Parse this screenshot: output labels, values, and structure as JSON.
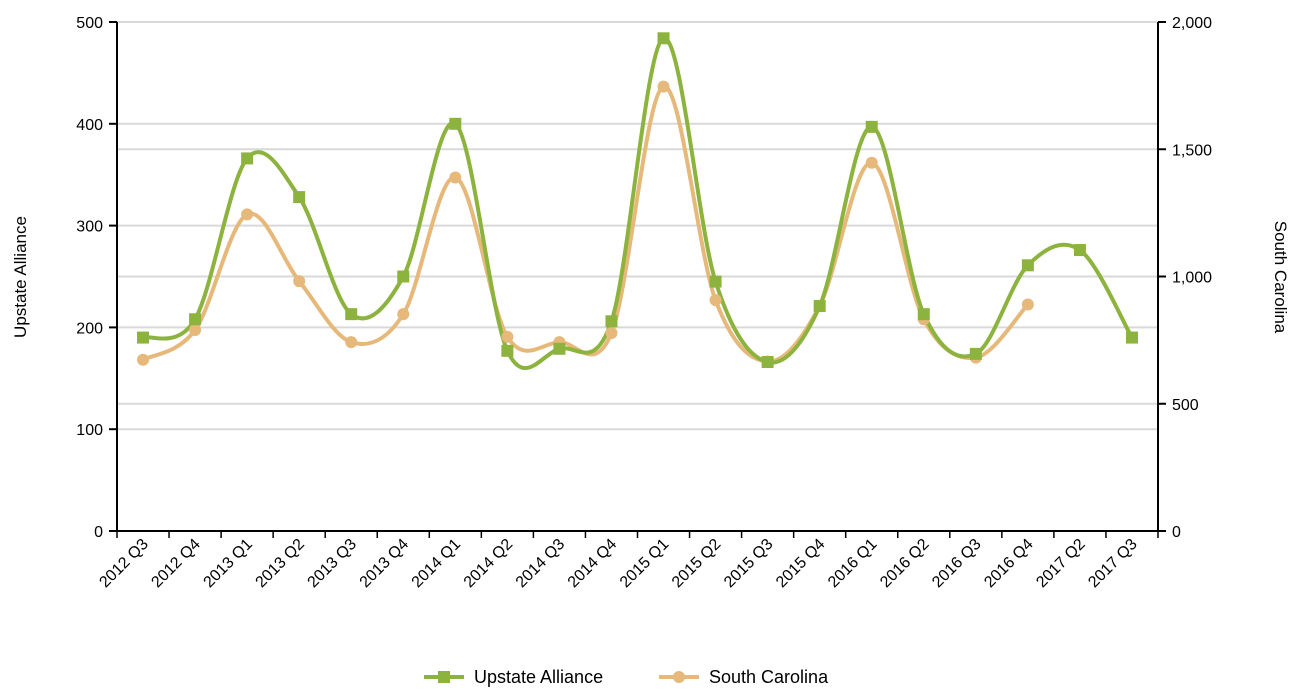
{
  "chart_data": {
    "type": "line",
    "smoothed": true,
    "categories": [
      "2012 Q3",
      "2012 Q4",
      "2013 Q1",
      "2013 Q2",
      "2013 Q3",
      "2013 Q4",
      "2014 Q1",
      "2014 Q2",
      "2014 Q3",
      "2014 Q4",
      "2015 Q1",
      "2015 Q2",
      "2015 Q3",
      "2015 Q4",
      "2016 Q1",
      "2016 Q2",
      "2016 Q3",
      "2016 Q4",
      "2017 Q2",
      "2017 Q3"
    ],
    "series": [
      {
        "name": "Upstate Alliance",
        "axis": "left",
        "marker": "square",
        "color": "#8db33f",
        "values": [
          190,
          208,
          366,
          328,
          213,
          250,
          400,
          177,
          179,
          206,
          484,
          245,
          166,
          221,
          397,
          213,
          174,
          261,
          276,
          190
        ]
      },
      {
        "name": "South Carolina",
        "axis": "right",
        "marker": "circle",
        "color": "#e6b87a",
        "values": [
          673,
          790,
          1244,
          982,
          742,
          852,
          1389,
          763,
          742,
          778,
          1746,
          907,
          666,
          885,
          1447,
          832,
          681,
          890,
          null,
          null
        ]
      }
    ],
    "y_left": {
      "label": "Upstate Alliance",
      "range": [
        0,
        500
      ],
      "ticks": [
        0,
        100,
        200,
        300,
        400,
        500
      ],
      "tick_labels": [
        "0",
        "100",
        "200",
        "300",
        "400",
        "500"
      ]
    },
    "y_right": {
      "label": "South Carolina",
      "range": [
        0,
        2000
      ],
      "ticks": [
        0,
        500,
        1000,
        1500,
        2000
      ],
      "tick_labels": [
        "0",
        "500",
        "1,000",
        "1,500",
        "2,000"
      ]
    },
    "grid": true,
    "legend_position": "bottom-center"
  }
}
